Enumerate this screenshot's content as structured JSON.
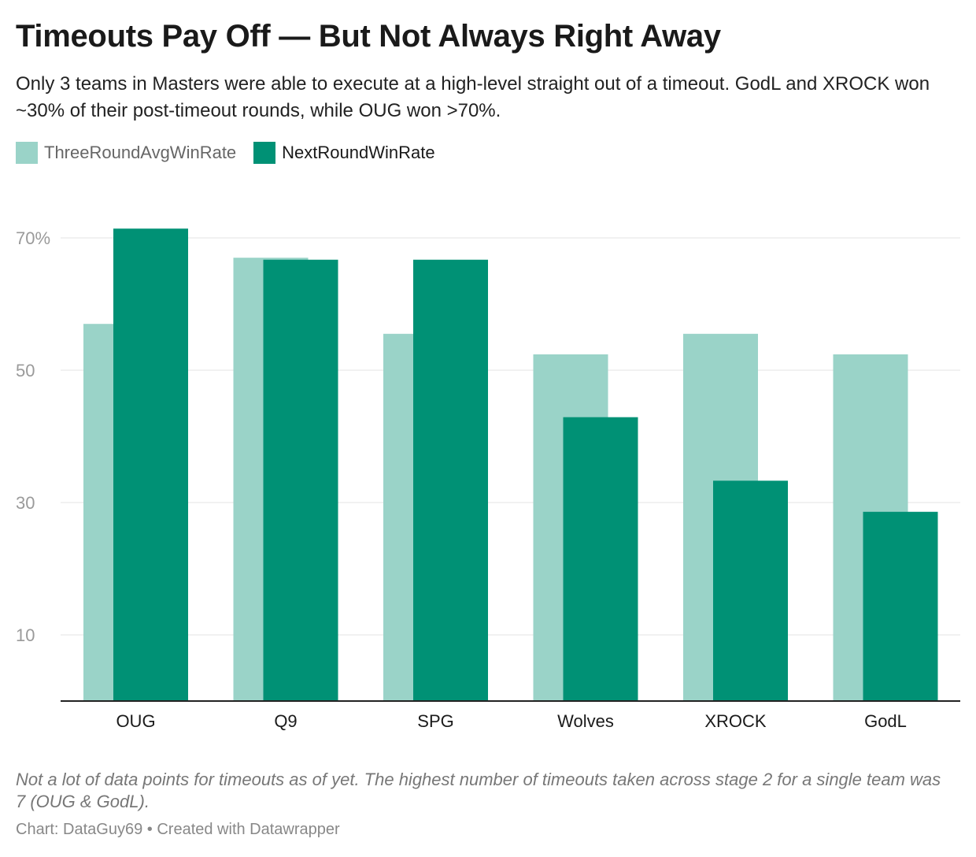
{
  "title": "Timeouts Pay Off — But Not Always Right Away",
  "subtitle": "Only 3 teams in Masters were able to execute at a high-level straight out of a timeout. GodL and XROCK won ~30% of their post-timeout rounds, while OUG won >70%.",
  "notes": "Not a lot of data points for timeouts as of yet. The highest number of timeouts taken across stage 2 for a single team was 7 (OUG & GodL).",
  "byline": {
    "source_label": "Chart: DataGuy69",
    "separator": "•",
    "credit": "Created with Datawrapper"
  },
  "colors": {
    "light": "#9ad3c8",
    "dark": "#009175",
    "grid": "#e3e3e3",
    "baseline": "#222222"
  },
  "chart_data": {
    "type": "bar",
    "categories": [
      "OUG",
      "Q9",
      "SPG",
      "Wolves",
      "XROCK",
      "GodL"
    ],
    "series": [
      {
        "name": "ThreeRoundAvgWinRate",
        "values": [
          57,
          67,
          55.5,
          52.4,
          55.5,
          52.4
        ]
      },
      {
        "name": "NextRoundWinRate",
        "values": [
          71.4,
          66.7,
          66.7,
          42.9,
          33.3,
          28.6
        ]
      }
    ],
    "yticks": [
      {
        "value": 70,
        "label": "70%"
      },
      {
        "value": 50,
        "label": "50"
      },
      {
        "value": 30,
        "label": "30"
      },
      {
        "value": 10,
        "label": "10"
      }
    ],
    "ylim": [
      0,
      75
    ],
    "legend_position": "top-left",
    "grid": true
  }
}
